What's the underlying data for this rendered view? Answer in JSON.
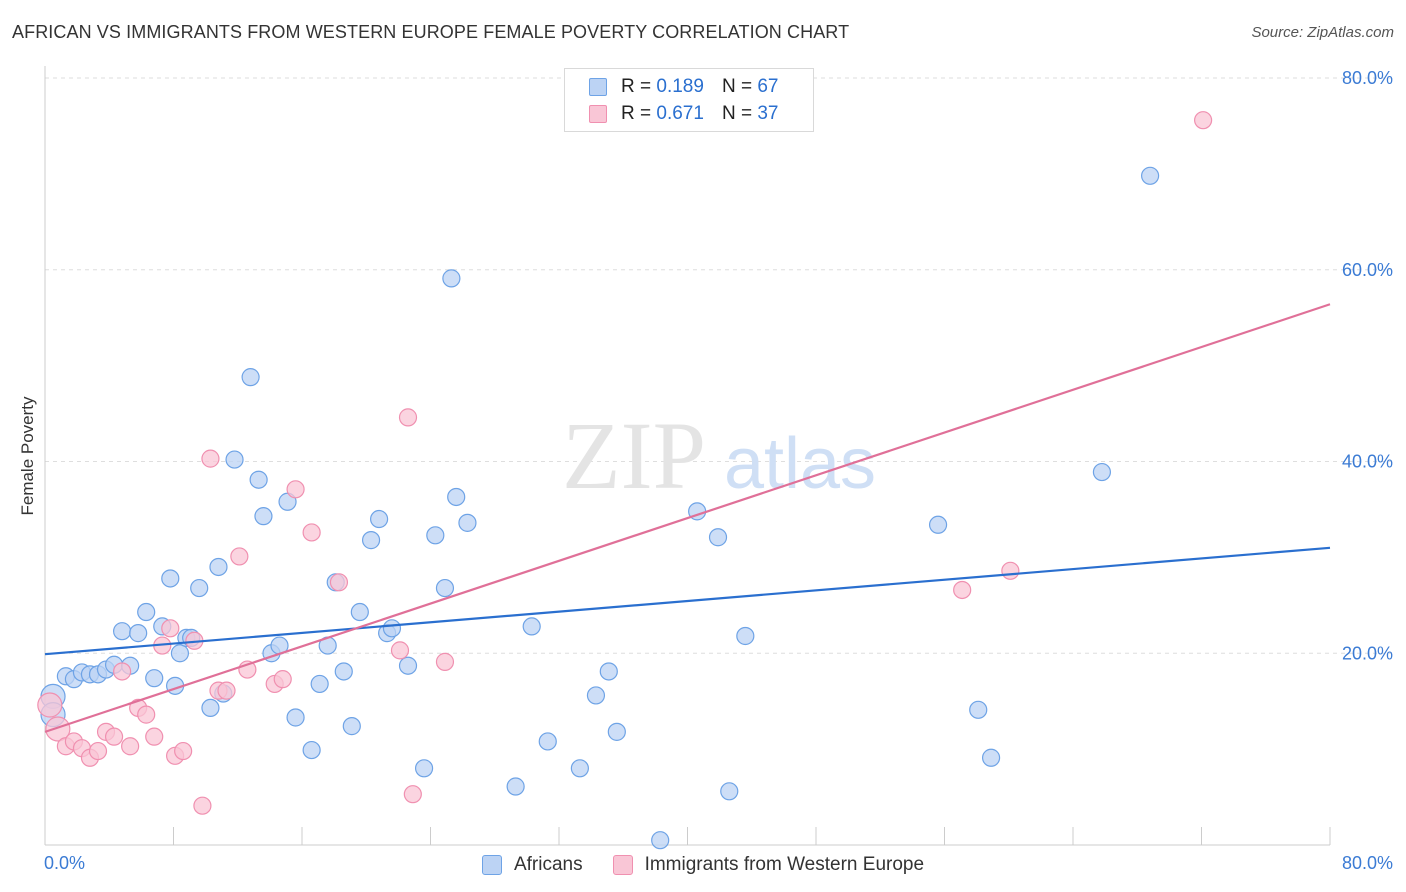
{
  "header": {
    "title": "AFRICAN VS IMMIGRANTS FROM WESTERN EUROPE FEMALE POVERTY CORRELATION CHART",
    "source": "Source: ZipAtlas.com"
  },
  "watermark": {
    "zip": "ZIP",
    "atlas": "atlas"
  },
  "legend": {
    "rows": [
      {
        "r_label": "R =",
        "r_value": "0.189",
        "n_label": "N =",
        "n_value": "67",
        "color": "#6ea3e6",
        "fill": "#bcd3f4"
      },
      {
        "r_label": "R =",
        "r_value": "0.671",
        "n_label": "N =",
        "n_value": "37",
        "color": "#f090b0",
        "fill": "#f9c6d6"
      }
    ]
  },
  "bottom_legend": {
    "items": [
      {
        "label": "Africans",
        "color": "#6ea3e6",
        "fill": "#bcd3f4"
      },
      {
        "label": "Immigrants from Western Europe",
        "color": "#f090b0",
        "fill": "#f9c6d6"
      }
    ]
  },
  "chart_data": {
    "type": "scatter",
    "title": "AFRICAN VS IMMIGRANTS FROM WESTERN EUROPE FEMALE POVERTY CORRELATION CHART",
    "xlabel": "",
    "ylabel": "Female Poverty",
    "xlim": [
      0,
      80
    ],
    "ylim": [
      0,
      80
    ],
    "x_tick_labels": [
      "0.0%",
      "80.0%"
    ],
    "y_tick_labels": [
      "20.0%",
      "40.0%",
      "60.0%",
      "80.0%"
    ],
    "y_ticks": [
      20,
      40,
      60,
      80
    ],
    "grid": true,
    "series": [
      {
        "name": "Africans",
        "color": "#6ea3e6",
        "line_color": "#2a6fcf",
        "fill": "#bcd3f4",
        "R": 0.189,
        "N": 67,
        "trend": {
          "x": [
            0,
            80
          ],
          "y": [
            19.9,
            31.0
          ]
        },
        "points": [
          [
            0.5,
            15.5
          ],
          [
            0.5,
            13.6
          ],
          [
            1.3,
            17.6
          ],
          [
            1.8,
            17.3
          ],
          [
            2.3,
            18.0
          ],
          [
            2.8,
            17.8
          ],
          [
            3.3,
            17.8
          ],
          [
            3.8,
            18.3
          ],
          [
            4.3,
            18.8
          ],
          [
            4.8,
            22.3
          ],
          [
            5.3,
            18.7
          ],
          [
            5.8,
            22.1
          ],
          [
            6.3,
            24.3
          ],
          [
            6.8,
            17.4
          ],
          [
            7.3,
            22.8
          ],
          [
            7.8,
            27.8
          ],
          [
            8.1,
            16.6
          ],
          [
            8.4,
            20.0
          ],
          [
            8.8,
            21.6
          ],
          [
            9.1,
            21.6
          ],
          [
            9.6,
            26.8
          ],
          [
            10.3,
            14.3
          ],
          [
            10.8,
            29.0
          ],
          [
            11.1,
            15.8
          ],
          [
            11.8,
            40.2
          ],
          [
            12.8,
            48.8
          ],
          [
            13.3,
            38.1
          ],
          [
            13.6,
            34.3
          ],
          [
            14.1,
            20.0
          ],
          [
            14.6,
            20.8
          ],
          [
            15.1,
            35.8
          ],
          [
            15.6,
            13.3
          ],
          [
            16.6,
            9.9
          ],
          [
            17.1,
            16.8
          ],
          [
            17.6,
            20.8
          ],
          [
            18.1,
            27.4
          ],
          [
            18.6,
            18.1
          ],
          [
            19.1,
            12.4
          ],
          [
            19.6,
            24.3
          ],
          [
            20.3,
            31.8
          ],
          [
            20.8,
            34.0
          ],
          [
            21.3,
            22.1
          ],
          [
            21.6,
            22.6
          ],
          [
            22.6,
            18.7
          ],
          [
            23.6,
            8.0
          ],
          [
            24.3,
            32.3
          ],
          [
            24.9,
            26.8
          ],
          [
            25.3,
            59.1
          ],
          [
            25.6,
            36.3
          ],
          [
            26.3,
            33.6
          ],
          [
            29.3,
            6.1
          ],
          [
            30.3,
            22.8
          ],
          [
            31.3,
            10.8
          ],
          [
            33.3,
            8.0
          ],
          [
            34.3,
            15.6
          ],
          [
            35.1,
            18.1
          ],
          [
            35.6,
            11.8
          ],
          [
            38.3,
            0.5
          ],
          [
            40.6,
            34.8
          ],
          [
            41.9,
            32.1
          ],
          [
            42.6,
            5.6
          ],
          [
            43.6,
            21.8
          ],
          [
            55.6,
            33.4
          ],
          [
            58.1,
            14.1
          ],
          [
            58.9,
            9.1
          ],
          [
            65.8,
            38.9
          ],
          [
            68.8,
            69.8
          ]
        ]
      },
      {
        "name": "Immigrants from Western Europe",
        "color": "#f090b0",
        "line_color": "#e07098",
        "fill": "#f9c6d6",
        "R": 0.671,
        "N": 37,
        "trend": {
          "x": [
            0,
            80
          ],
          "y": [
            11.8,
            56.4
          ]
        },
        "points": [
          [
            0.3,
            14.6
          ],
          [
            0.8,
            12.1
          ],
          [
            1.3,
            10.3
          ],
          [
            1.8,
            10.8
          ],
          [
            2.3,
            10.1
          ],
          [
            2.8,
            9.1
          ],
          [
            3.3,
            9.8
          ],
          [
            3.8,
            11.8
          ],
          [
            4.3,
            11.3
          ],
          [
            4.8,
            18.1
          ],
          [
            5.3,
            10.3
          ],
          [
            5.8,
            14.3
          ],
          [
            6.3,
            13.6
          ],
          [
            6.8,
            11.3
          ],
          [
            7.3,
            20.8
          ],
          [
            7.8,
            22.6
          ],
          [
            8.1,
            9.3
          ],
          [
            8.6,
            9.8
          ],
          [
            9.3,
            21.3
          ],
          [
            9.8,
            4.1
          ],
          [
            10.3,
            40.3
          ],
          [
            10.8,
            16.1
          ],
          [
            11.3,
            16.1
          ],
          [
            12.1,
            30.1
          ],
          [
            12.6,
            18.3
          ],
          [
            14.3,
            16.8
          ],
          [
            14.8,
            17.3
          ],
          [
            15.6,
            37.1
          ],
          [
            16.6,
            32.6
          ],
          [
            18.3,
            27.4
          ],
          [
            22.1,
            20.3
          ],
          [
            22.6,
            44.6
          ],
          [
            22.9,
            5.3
          ],
          [
            24.9,
            19.1
          ],
          [
            57.1,
            26.6
          ],
          [
            60.1,
            28.6
          ],
          [
            72.1,
            75.6
          ]
        ]
      }
    ]
  }
}
